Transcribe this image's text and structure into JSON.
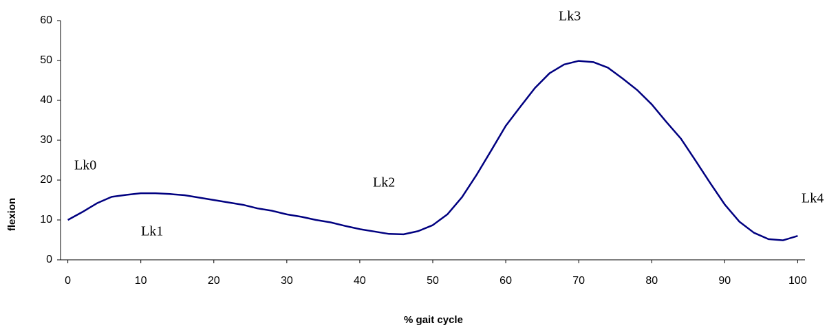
{
  "chart_data": {
    "type": "line",
    "xlabel": "% gait cycle",
    "ylabel": "flexion",
    "x": [
      0,
      2,
      4,
      6,
      8,
      10,
      12,
      14,
      16,
      18,
      20,
      22,
      24,
      26,
      28,
      30,
      32,
      34,
      36,
      38,
      40,
      42,
      44,
      46,
      48,
      50,
      52,
      54,
      56,
      58,
      60,
      62,
      64,
      66,
      68,
      70,
      72,
      74,
      76,
      78,
      80,
      82,
      84,
      86,
      88,
      90,
      92,
      94,
      96,
      98,
      100
    ],
    "series": [
      {
        "color": "#000080",
        "values": [
          10,
          12,
          14.2,
          15.8,
          16.3,
          16.7,
          16.7,
          16.5,
          16.2,
          15.6,
          15,
          14.4,
          13.8,
          12.9,
          12.3,
          11.4,
          10.8,
          10,
          9.4,
          8.5,
          7.7,
          7.1,
          6.5,
          6.4,
          7.2,
          8.7,
          11.4,
          15.7,
          21.3,
          27.4,
          33.6,
          38.4,
          43.1,
          46.8,
          49,
          49.9,
          49.6,
          48.2,
          45.5,
          42.6,
          39,
          34.6,
          30.4,
          24.9,
          19.3,
          13.9,
          9.6,
          6.8,
          5.2,
          4.9,
          6
        ]
      }
    ],
    "xlim": [
      -1,
      101
    ],
    "xticks": [
      0,
      10,
      20,
      30,
      40,
      50,
      60,
      70,
      80,
      90,
      100
    ],
    "ylim": [
      0,
      60
    ],
    "yticks": [
      0,
      10,
      20,
      30,
      40,
      50,
      60
    ],
    "annotations": [
      "Lk0",
      "Lk1",
      "Lk2",
      "Lk3",
      "Lk4"
    ]
  }
}
